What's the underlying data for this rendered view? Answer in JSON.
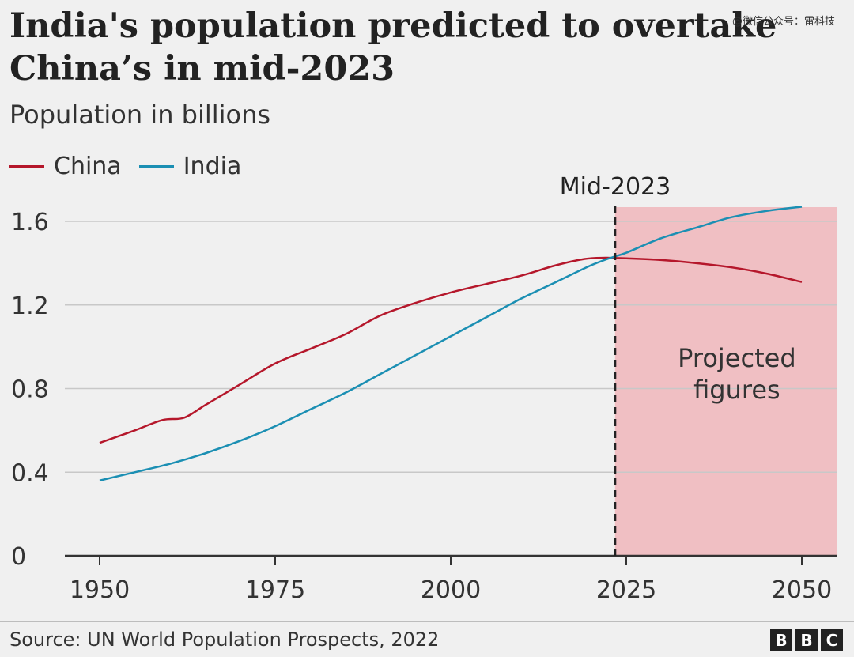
{
  "header": {
    "title_line1": "India's population predicted to overtake",
    "title_line2": "China’s in mid-2023",
    "watermark": "@微信公众号：雷科技"
  },
  "footer": {
    "source": "Source: UN World Population Prospects, 2022",
    "logo_letters": [
      "B",
      "B",
      "C"
    ]
  },
  "chart_data": {
    "type": "line",
    "title": "India's population predicted to overtake China’s in mid-2023",
    "subtitle": "Population in billions",
    "xlabel": "",
    "ylabel": "",
    "xlim": [
      1950,
      2050
    ],
    "ylim": [
      0,
      1.6
    ],
    "x_ticks": [
      "1950",
      "1975",
      "2000",
      "2025",
      "2050"
    ],
    "y_ticks": [
      "0",
      "0.4",
      "0.8",
      "1.2",
      "1.6"
    ],
    "grid": "horizontal",
    "legend_position": "top-left",
    "series": [
      {
        "name": "China",
        "color": "#b5172b",
        "x": [
          1950,
          1955,
          1959,
          1962,
          1965,
          1970,
          1975,
          1980,
          1985,
          1990,
          1995,
          2000,
          2005,
          2010,
          2015,
          2019,
          2022,
          2023,
          2025,
          2030,
          2035,
          2040,
          2045,
          2050
        ],
        "values": [
          0.54,
          0.6,
          0.65,
          0.66,
          0.72,
          0.82,
          0.92,
          0.99,
          1.06,
          1.15,
          1.21,
          1.26,
          1.3,
          1.34,
          1.39,
          1.42,
          1.426,
          1.425,
          1.423,
          1.415,
          1.4,
          1.38,
          1.35,
          1.31
        ]
      },
      {
        "name": "India",
        "color": "#1b8fb3",
        "x": [
          1950,
          1955,
          1960,
          1965,
          1970,
          1975,
          1980,
          1985,
          1990,
          1995,
          2000,
          2005,
          2010,
          2015,
          2020,
          2023,
          2025,
          2030,
          2035,
          2040,
          2045,
          2050
        ],
        "values": [
          0.36,
          0.4,
          0.44,
          0.49,
          0.55,
          0.62,
          0.7,
          0.78,
          0.87,
          0.96,
          1.05,
          1.14,
          1.23,
          1.31,
          1.39,
          1.428,
          1.45,
          1.52,
          1.57,
          1.62,
          1.65,
          1.67
        ]
      }
    ],
    "annotations": [
      {
        "type": "vline",
        "x": 2023.4,
        "label": "Mid-2023",
        "style": "dashed"
      },
      {
        "type": "shaded_region",
        "x_start": 2023.4,
        "x_end": 2050,
        "label_line1": "Projected",
        "label_line2": "figures",
        "color": "#f0bfc3"
      }
    ]
  }
}
